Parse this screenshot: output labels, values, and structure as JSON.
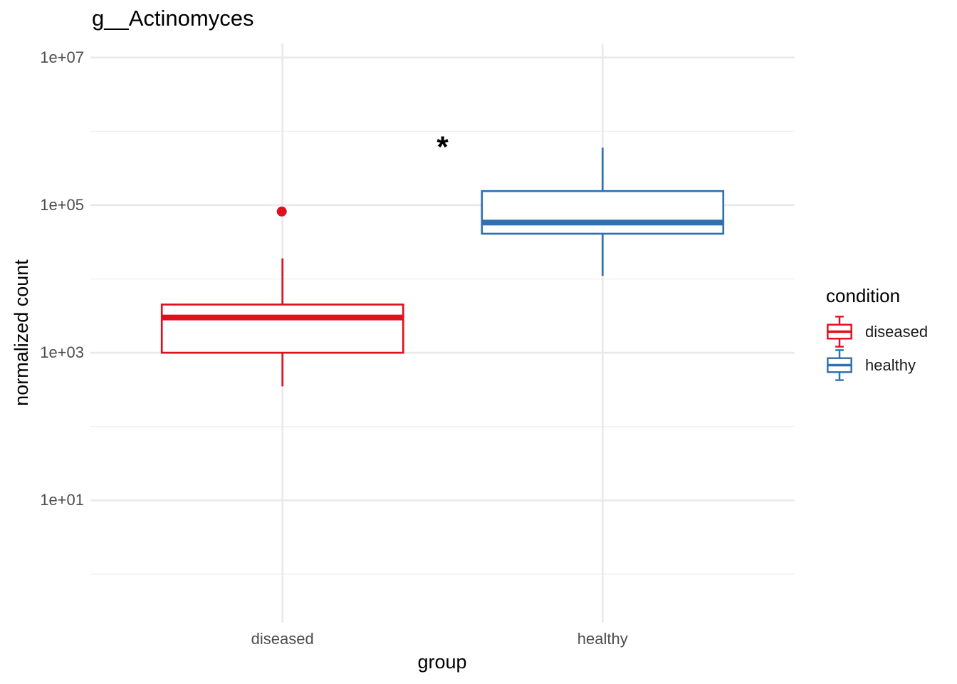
{
  "chart_data": {
    "type": "boxplot",
    "title": "g__Actinomyces",
    "xlabel": "group",
    "ylabel": "normalized count",
    "y_scale": "log10",
    "ylim": [
      0.22,
      15500000
    ],
    "grid": "major-and-minor",
    "categories": [
      "diseased",
      "healthy"
    ],
    "y_ticks": [
      {
        "label": "1e+07",
        "value": 10000000
      },
      {
        "label": "1e+05",
        "value": 100000
      },
      {
        "label": "1e+03",
        "value": 1000
      },
      {
        "label": "1e+01",
        "value": 10
      }
    ],
    "y_minor_ticks": [
      1000000,
      10000,
      100,
      1
    ],
    "series": [
      {
        "name": "diseased",
        "color": "#E0101E",
        "whisker_low": 350,
        "q1": 1000,
        "median": 3000,
        "q3": 4500,
        "whisker_high": 19000,
        "outliers": [
          82000
        ]
      },
      {
        "name": "healthy",
        "color": "#3070B0",
        "whisker_low": 11000,
        "q1": 41000,
        "median": 58000,
        "q3": 155000,
        "whisker_high": 600000,
        "outliers": []
      }
    ],
    "annotation": {
      "label": "*",
      "y_value": 780000,
      "between": [
        "diseased",
        "healthy"
      ]
    }
  },
  "legend": {
    "title": "condition",
    "position": "right",
    "items": [
      {
        "label": "diseased",
        "color": "#E0101E"
      },
      {
        "label": "healthy",
        "color": "#3070B0"
      }
    ]
  }
}
